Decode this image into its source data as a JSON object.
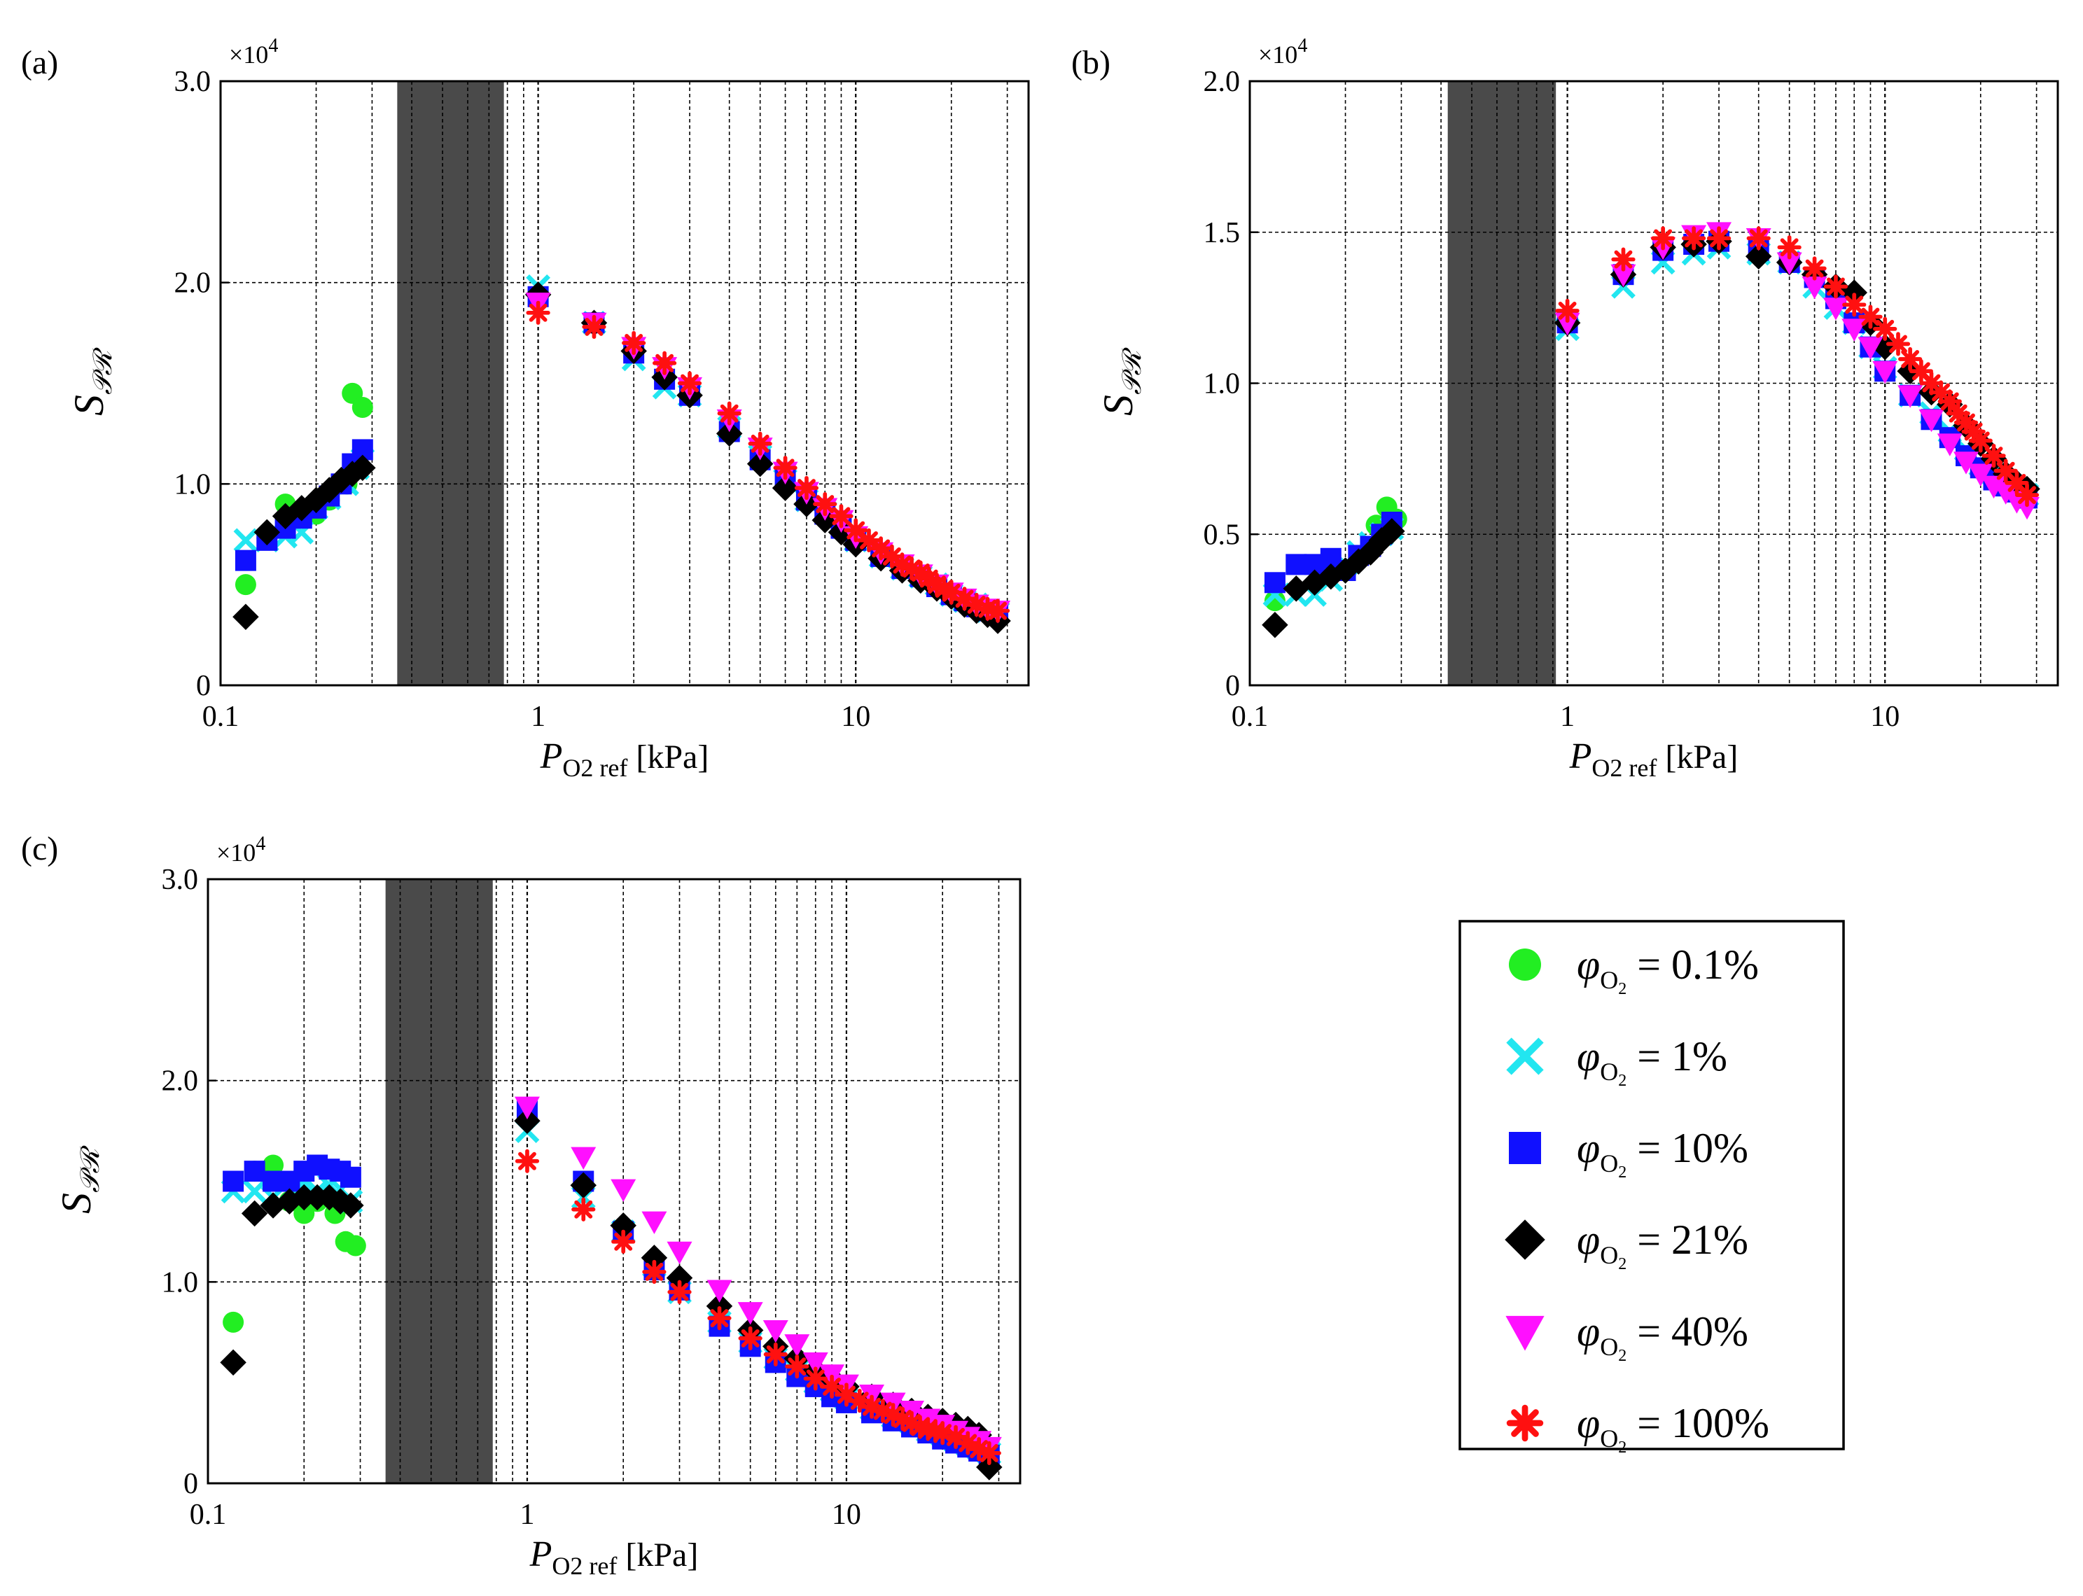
{
  "figure": {
    "x_axis_label_symbol": "P",
    "x_axis_label_sub": "O2 ref",
    "x_axis_label_unit": "[kPa]",
    "y_axis_label_symbol": "S",
    "y_axis_label_sub": "𝒫ℛ",
    "multiplier_base": "×10",
    "multiplier_exp": "4",
    "legend_symbol": "φ",
    "legend_sub": "O",
    "legend_sub2": "2"
  },
  "chart_data": [
    {
      "panel": "(a)",
      "type": "scatter",
      "xscale": "log",
      "xlim": [
        0.1,
        35
      ],
      "ylim": [
        0,
        3.0
      ],
      "x_ticks": [
        "0.1",
        "1",
        "10"
      ],
      "y_ticks": [
        "0",
        "1.0",
        "2.0",
        "3.0"
      ],
      "shaded_region": [
        0.36,
        0.78
      ],
      "series": [
        {
          "name": "0.1%",
          "x": [
            0.12,
            0.14,
            0.16,
            0.2,
            0.22,
            0.25,
            0.26,
            0.28
          ],
          "y": [
            0.5,
            0.73,
            0.9,
            0.85,
            0.92,
            1.0,
            1.45,
            1.38
          ]
        },
        {
          "name": "1%",
          "x": [
            0.12,
            0.14,
            0.16,
            0.18,
            0.2,
            0.22,
            0.25,
            0.27,
            0.28,
            1.0,
            1.5,
            2.0,
            2.5,
            3.0,
            4.0,
            5.0,
            6.0,
            7.0,
            8.0,
            9.0,
            10,
            12,
            14,
            16,
            18,
            20,
            22,
            24,
            26,
            28
          ],
          "y": [
            0.72,
            0.72,
            0.74,
            0.76,
            0.88,
            0.93,
            1.0,
            1.08,
            1.12,
            1.98,
            1.8,
            1.62,
            1.48,
            1.44,
            1.28,
            1.14,
            1.02,
            0.92,
            0.86,
            0.8,
            0.72,
            0.64,
            0.58,
            0.54,
            0.5,
            0.45,
            0.42,
            0.4,
            0.37,
            0.36
          ]
        },
        {
          "name": "10%",
          "x": [
            0.12,
            0.14,
            0.16,
            0.18,
            0.2,
            0.22,
            0.24,
            0.26,
            0.28,
            1.0,
            1.5,
            2.0,
            2.5,
            3.0,
            4.0,
            5.0,
            6.0,
            7.0,
            8.0,
            9.0,
            10,
            12,
            14,
            16,
            18,
            20,
            22,
            24,
            26,
            28
          ],
          "y": [
            0.62,
            0.72,
            0.78,
            0.83,
            0.88,
            0.94,
            1.0,
            1.1,
            1.17,
            1.93,
            1.8,
            1.65,
            1.52,
            1.44,
            1.26,
            1.12,
            1.02,
            0.92,
            0.85,
            0.78,
            0.72,
            0.64,
            0.58,
            0.54,
            0.49,
            0.45,
            0.42,
            0.39,
            0.37,
            0.36
          ]
        },
        {
          "name": "21%",
          "x": [
            0.12,
            0.14,
            0.16,
            0.18,
            0.2,
            0.22,
            0.24,
            0.26,
            0.28,
            1.0,
            1.5,
            2.0,
            2.5,
            3.0,
            4.0,
            5.0,
            6.0,
            7.0,
            8.0,
            9.0,
            10,
            12,
            14,
            16,
            18,
            20,
            22,
            24,
            26,
            28
          ],
          "y": [
            0.34,
            0.76,
            0.84,
            0.88,
            0.92,
            0.97,
            1.02,
            1.05,
            1.08,
            1.94,
            1.8,
            1.66,
            1.53,
            1.44,
            1.25,
            1.1,
            0.98,
            0.9,
            0.82,
            0.76,
            0.7,
            0.63,
            0.57,
            0.52,
            0.48,
            0.44,
            0.4,
            0.37,
            0.35,
            0.32
          ]
        },
        {
          "name": "40%",
          "x": [
            1.0,
            1.5,
            2.0,
            2.5,
            3.0,
            4.0,
            5.0,
            6.0,
            7.0,
            8.0,
            9.0,
            10,
            12,
            14,
            16,
            18,
            20,
            22,
            24,
            26,
            28
          ],
          "y": [
            1.9,
            1.8,
            1.68,
            1.58,
            1.48,
            1.32,
            1.18,
            1.06,
            0.96,
            0.88,
            0.82,
            0.74,
            0.66,
            0.6,
            0.55,
            0.5,
            0.46,
            0.43,
            0.4,
            0.38,
            0.37
          ]
        },
        {
          "name": "100%",
          "x": [
            1.0,
            1.5,
            2.0,
            2.5,
            3.0,
            4.0,
            5.0,
            6.0,
            7.0,
            8.0,
            9.0,
            10,
            11,
            12,
            13,
            14,
            15,
            16,
            17,
            18,
            19,
            20,
            22,
            24,
            26,
            28
          ],
          "y": [
            1.85,
            1.78,
            1.7,
            1.6,
            1.5,
            1.35,
            1.2,
            1.08,
            0.98,
            0.9,
            0.84,
            0.77,
            0.72,
            0.68,
            0.64,
            0.6,
            0.58,
            0.56,
            0.53,
            0.5,
            0.48,
            0.46,
            0.43,
            0.4,
            0.38,
            0.37
          ]
        }
      ]
    },
    {
      "panel": "(b)",
      "type": "scatter",
      "xscale": "log",
      "xlim": [
        0.1,
        35
      ],
      "ylim": [
        0,
        2.0
      ],
      "x_ticks": [
        "0.1",
        "1",
        "10"
      ],
      "y_ticks": [
        "0",
        "0.5",
        "1.0",
        "1.5",
        "2.0"
      ],
      "shaded_region": [
        0.42,
        0.92
      ],
      "series": [
        {
          "name": "0.1%",
          "x": [
            0.12,
            0.25,
            0.27,
            0.29
          ],
          "y": [
            0.28,
            0.53,
            0.59,
            0.55
          ]
        },
        {
          "name": "1%",
          "x": [
            0.12,
            0.14,
            0.16,
            0.18,
            0.2,
            0.22,
            0.24,
            0.26,
            0.28,
            1.0,
            1.5,
            2.0,
            2.5,
            3.0,
            4.0,
            5.0,
            6.0,
            7.0,
            8.0,
            9.0,
            10,
            12,
            14,
            16,
            18,
            20,
            22,
            24,
            26,
            28
          ],
          "y": [
            0.3,
            0.3,
            0.3,
            0.35,
            0.4,
            0.44,
            0.47,
            0.5,
            0.52,
            1.18,
            1.32,
            1.4,
            1.43,
            1.45,
            1.43,
            1.4,
            1.32,
            1.25,
            1.2,
            1.12,
            1.05,
            0.96,
            0.9,
            0.84,
            0.78,
            0.73,
            0.7,
            0.67,
            0.65,
            0.63
          ]
        },
        {
          "name": "10%",
          "x": [
            0.12,
            0.14,
            0.16,
            0.18,
            0.2,
            0.22,
            0.24,
            0.26,
            0.28,
            1.0,
            1.5,
            2.0,
            2.5,
            3.0,
            4.0,
            5.0,
            6.0,
            7.0,
            8.0,
            9.0,
            10,
            12,
            14,
            16,
            18,
            20,
            22,
            24,
            26,
            28
          ],
          "y": [
            0.34,
            0.4,
            0.4,
            0.42,
            0.38,
            0.43,
            0.46,
            0.5,
            0.54,
            1.2,
            1.36,
            1.44,
            1.46,
            1.47,
            1.44,
            1.4,
            1.35,
            1.28,
            1.2,
            1.12,
            1.04,
            0.96,
            0.88,
            0.82,
            0.76,
            0.72,
            0.68,
            0.66,
            0.64,
            0.62
          ]
        },
        {
          "name": "21%",
          "x": [
            0.12,
            0.14,
            0.16,
            0.18,
            0.2,
            0.22,
            0.24,
            0.26,
            0.28,
            1.0,
            1.5,
            2.0,
            2.5,
            3.0,
            4.0,
            5.0,
            6.0,
            7.0,
            8.0,
            9.0,
            10,
            12,
            14,
            16,
            18,
            20,
            22,
            24,
            26,
            28
          ],
          "y": [
            0.2,
            0.32,
            0.34,
            0.36,
            0.38,
            0.41,
            0.44,
            0.48,
            0.51,
            1.2,
            1.36,
            1.45,
            1.46,
            1.47,
            1.42,
            1.4,
            1.36,
            1.32,
            1.3,
            1.2,
            1.12,
            1.04,
            0.97,
            0.93,
            0.86,
            0.8,
            0.75,
            0.7,
            0.67,
            0.65
          ]
        },
        {
          "name": "40%",
          "x": [
            1.0,
            1.5,
            2.0,
            2.5,
            3.0,
            4.0,
            5.0,
            6.0,
            7.0,
            8.0,
            9.0,
            10,
            12,
            14,
            16,
            18,
            20,
            22,
            24,
            26,
            28
          ],
          "y": [
            1.2,
            1.36,
            1.45,
            1.49,
            1.5,
            1.48,
            1.4,
            1.32,
            1.25,
            1.18,
            1.12,
            1.04,
            0.96,
            0.88,
            0.8,
            0.74,
            0.7,
            0.66,
            0.64,
            0.61,
            0.59
          ]
        },
        {
          "name": "100%",
          "x": [
            1.0,
            1.5,
            2.0,
            2.5,
            3.0,
            4.0,
            5.0,
            6.0,
            7.0,
            8.0,
            9.0,
            10,
            11,
            12,
            13,
            14,
            15,
            16,
            17,
            18,
            19,
            20,
            22,
            24,
            26,
            28
          ],
          "y": [
            1.24,
            1.41,
            1.48,
            1.48,
            1.48,
            1.48,
            1.45,
            1.38,
            1.32,
            1.26,
            1.22,
            1.18,
            1.13,
            1.08,
            1.04,
            1.0,
            0.97,
            0.94,
            0.9,
            0.87,
            0.84,
            0.81,
            0.76,
            0.71,
            0.67,
            0.63
          ]
        }
      ]
    },
    {
      "panel": "(c)",
      "type": "scatter",
      "xscale": "log",
      "xlim": [
        0.1,
        35
      ],
      "ylim": [
        0,
        3.0
      ],
      "x_ticks": [
        "0.1",
        "1",
        "10"
      ],
      "y_ticks": [
        "0",
        "1.0",
        "2.0",
        "3.0"
      ],
      "shaded_region": [
        0.36,
        0.78
      ],
      "series": [
        {
          "name": "0.1%",
          "x": [
            0.12,
            0.14,
            0.16,
            0.18,
            0.2,
            0.22,
            0.25,
            0.27,
            0.29
          ],
          "y": [
            0.8,
            1.55,
            1.58,
            1.4,
            1.34,
            1.4,
            1.34,
            1.2,
            1.18
          ]
        },
        {
          "name": "1%",
          "x": [
            0.12,
            0.14,
            0.16,
            0.18,
            0.2,
            0.22,
            0.24,
            0.26,
            0.28,
            1.0,
            1.5,
            2.0,
            2.5,
            3.0,
            4.0,
            5.0,
            6.0,
            7.0,
            8.0,
            9.0,
            10,
            12,
            14,
            16,
            18,
            20,
            22,
            24,
            26,
            28
          ],
          "y": [
            1.45,
            1.45,
            1.42,
            1.45,
            1.5,
            1.45,
            1.48,
            1.46,
            1.4,
            1.75,
            1.42,
            1.25,
            1.08,
            0.95,
            0.8,
            0.7,
            0.62,
            0.56,
            0.5,
            0.46,
            0.42,
            0.37,
            0.33,
            0.3,
            0.26,
            0.24,
            0.21,
            0.19,
            0.17,
            0.15
          ]
        },
        {
          "name": "10%",
          "x": [
            0.12,
            0.14,
            0.16,
            0.18,
            0.2,
            0.22,
            0.24,
            0.26,
            0.28,
            1.0,
            1.5,
            2.0,
            2.5,
            3.0,
            4.0,
            5.0,
            6.0,
            7.0,
            8.0,
            9.0,
            10,
            12,
            14,
            16,
            18,
            20,
            22,
            24,
            26,
            28
          ],
          "y": [
            1.5,
            1.55,
            1.5,
            1.5,
            1.55,
            1.58,
            1.56,
            1.55,
            1.52,
            1.85,
            1.5,
            1.25,
            1.06,
            0.96,
            0.78,
            0.68,
            0.6,
            0.53,
            0.48,
            0.43,
            0.4,
            0.35,
            0.31,
            0.28,
            0.25,
            0.22,
            0.2,
            0.18,
            0.16,
            0.14
          ]
        },
        {
          "name": "21%",
          "x": [
            0.12,
            0.14,
            0.16,
            0.18,
            0.2,
            0.22,
            0.24,
            0.26,
            0.28,
            1.0,
            1.5,
            2.0,
            2.5,
            3.0,
            4.0,
            5.0,
            6.0,
            7.0,
            8.0,
            9.0,
            10,
            12,
            14,
            16,
            18,
            20,
            22,
            24,
            26,
            28
          ],
          "y": [
            0.6,
            1.34,
            1.38,
            1.4,
            1.42,
            1.42,
            1.42,
            1.4,
            1.38,
            1.8,
            1.48,
            1.28,
            1.12,
            1.02,
            0.88,
            0.76,
            0.68,
            0.62,
            0.56,
            0.52,
            0.48,
            0.43,
            0.39,
            0.36,
            0.33,
            0.31,
            0.29,
            0.27,
            0.24,
            0.08
          ]
        },
        {
          "name": "40%",
          "x": [
            1.0,
            1.5,
            2.0,
            2.5,
            3.0,
            4.0,
            5.0,
            6.0,
            7.0,
            8.0,
            9.0,
            10,
            12,
            14,
            16,
            18,
            20,
            22,
            24,
            26,
            28
          ],
          "y": [
            1.87,
            1.62,
            1.46,
            1.3,
            1.15,
            0.96,
            0.85,
            0.76,
            0.69,
            0.6,
            0.54,
            0.49,
            0.44,
            0.4,
            0.36,
            0.32,
            0.29,
            0.26,
            0.23,
            0.21,
            0.18
          ]
        },
        {
          "name": "100%",
          "x": [
            1.0,
            1.5,
            2.0,
            2.5,
            3.0,
            4.0,
            5.0,
            6.0,
            7.0,
            8.0,
            9.0,
            10,
            11,
            12,
            13,
            14,
            15,
            16,
            17,
            18,
            19,
            20,
            22,
            24,
            26,
            28
          ],
          "y": [
            1.6,
            1.36,
            1.2,
            1.05,
            0.95,
            0.82,
            0.72,
            0.64,
            0.58,
            0.52,
            0.48,
            0.44,
            0.41,
            0.38,
            0.36,
            0.34,
            0.32,
            0.3,
            0.28,
            0.27,
            0.26,
            0.25,
            0.23,
            0.2,
            0.17,
            0.15
          ]
        }
      ]
    }
  ],
  "legend": [
    {
      "label": "0.1%",
      "color": "#22ee22",
      "marker": "circle"
    },
    {
      "label": "1%",
      "color": "#22e6f0",
      "marker": "x"
    },
    {
      "label": "10%",
      "color": "#1010ff",
      "marker": "square"
    },
    {
      "label": "21%",
      "color": "#000000",
      "marker": "diamond"
    },
    {
      "label": "40%",
      "color": "#ff10ff",
      "marker": "triangle-down"
    },
    {
      "label": "100%",
      "color": "#ff1010",
      "marker": "asterisk"
    }
  ],
  "colors": {
    "shade": "#4a4a4a",
    "grid": "#000000",
    "frame": "#000000"
  }
}
